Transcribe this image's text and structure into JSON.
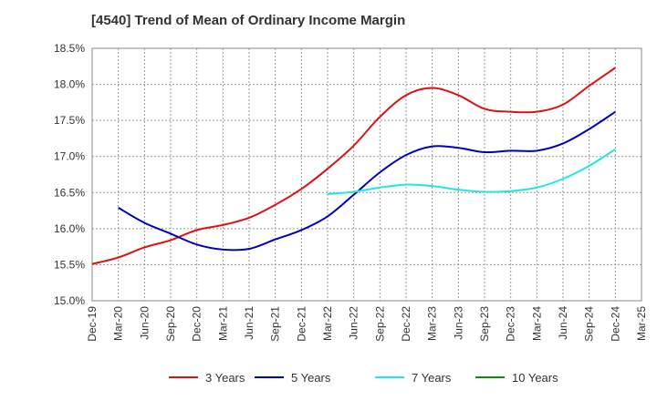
{
  "chart_data": {
    "type": "line",
    "title": "[4540]  Trend of Mean of Ordinary Income Margin",
    "xlabel": "",
    "ylabel": "",
    "ylim": [
      15.0,
      18.5
    ],
    "grid": true,
    "legend_position": "bottom",
    "categories": [
      "Dec-19",
      "Mar-20",
      "Jun-20",
      "Sep-20",
      "Dec-20",
      "Mar-21",
      "Jun-21",
      "Sep-21",
      "Dec-21",
      "Mar-22",
      "Jun-22",
      "Sep-22",
      "Dec-22",
      "Mar-23",
      "Jun-23",
      "Sep-23",
      "Dec-23",
      "Mar-24",
      "Jun-24",
      "Sep-24",
      "Dec-24",
      "Mar-25"
    ],
    "y_ticks": [
      "15.0%",
      "15.5%",
      "16.0%",
      "16.5%",
      "17.0%",
      "17.5%",
      "18.0%",
      "18.5%"
    ],
    "series": [
      {
        "name": "3 Years",
        "color": "#dd1111",
        "values": [
          15.51,
          15.6,
          15.74,
          15.84,
          15.98,
          16.05,
          16.15,
          16.33,
          16.55,
          16.83,
          17.15,
          17.55,
          17.85,
          17.95,
          17.85,
          17.66,
          17.62,
          17.62,
          17.72,
          17.98,
          18.23,
          null
        ]
      },
      {
        "name": "5 Years",
        "color": "#0000bb",
        "values": [
          null,
          16.29,
          16.08,
          15.93,
          15.78,
          15.71,
          15.72,
          15.85,
          15.98,
          16.17,
          16.47,
          16.78,
          17.02,
          17.14,
          17.12,
          17.06,
          17.08,
          17.08,
          17.18,
          17.38,
          17.62,
          null
        ]
      },
      {
        "name": "7 Years",
        "color": "#22e5e5",
        "values": [
          null,
          null,
          null,
          null,
          null,
          null,
          null,
          null,
          null,
          16.48,
          16.51,
          16.57,
          16.61,
          16.59,
          16.54,
          16.51,
          16.52,
          16.57,
          16.69,
          16.87,
          17.1,
          null
        ]
      },
      {
        "name": "10 Years",
        "color": "#118811",
        "values": [
          null,
          null,
          null,
          null,
          null,
          null,
          null,
          null,
          null,
          null,
          null,
          null,
          null,
          null,
          null,
          null,
          null,
          null,
          null,
          null,
          null,
          null
        ]
      }
    ]
  }
}
